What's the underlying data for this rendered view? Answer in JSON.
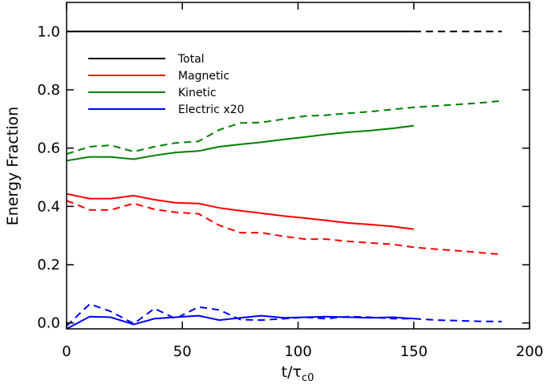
{
  "chart_data": {
    "type": "line",
    "title": "",
    "xlabel": "t/τ",
    "xlabel_sub": "c0",
    "ylabel": "Energy Fraction",
    "xlim": [
      0,
      200
    ],
    "ylim": [
      -0.02,
      1.1
    ],
    "xticks": [
      0,
      50,
      100,
      150,
      200
    ],
    "xtick_labels": [
      "0",
      "50",
      "100",
      "150",
      "200"
    ],
    "yticks": [
      0.0,
      0.2,
      0.4,
      0.6,
      0.8,
      1.0
    ],
    "ytick_labels": [
      "0.0",
      "0.2",
      "0.4",
      "0.6",
      "0.8",
      "1.0"
    ],
    "legend": [
      "Total",
      "Magnetic",
      "Kinetic",
      "Electric x20"
    ],
    "legend_position": "top-left",
    "series": [
      {
        "name": "Total",
        "style": "solid",
        "color": "#000000",
        "x": [
          0,
          150
        ],
        "y": [
          1.0,
          1.0
        ]
      },
      {
        "name": "Total",
        "style": "dashed",
        "color": "#000000",
        "x": [
          150,
          188
        ],
        "y": [
          1.0,
          1.0
        ]
      },
      {
        "name": "Magnetic",
        "style": "solid",
        "color": "#ff0000",
        "x": [
          0,
          10,
          19,
          29,
          38,
          47,
          57,
          66,
          75,
          84,
          94,
          103,
          112,
          122,
          131,
          141,
          150
        ],
        "y": [
          0.443,
          0.427,
          0.427,
          0.437,
          0.423,
          0.413,
          0.41,
          0.395,
          0.385,
          0.377,
          0.367,
          0.36,
          0.352,
          0.343,
          0.338,
          0.331,
          0.322
        ]
      },
      {
        "name": "Magnetic",
        "style": "dashed",
        "color": "#ff0000",
        "x": [
          0,
          10,
          19,
          29,
          38,
          47,
          57,
          66,
          75,
          84,
          94,
          103,
          112,
          122,
          131,
          141,
          150,
          160,
          169,
          178,
          188
        ],
        "y": [
          0.42,
          0.388,
          0.388,
          0.41,
          0.39,
          0.38,
          0.375,
          0.335,
          0.31,
          0.31,
          0.297,
          0.288,
          0.288,
          0.28,
          0.275,
          0.27,
          0.26,
          0.253,
          0.248,
          0.242,
          0.235
        ]
      },
      {
        "name": "Kinetic",
        "style": "solid",
        "color": "#008000",
        "x": [
          0,
          10,
          19,
          29,
          38,
          47,
          57,
          66,
          75,
          84,
          94,
          103,
          112,
          122,
          131,
          141,
          150
        ],
        "y": [
          0.557,
          0.57,
          0.57,
          0.562,
          0.575,
          0.585,
          0.59,
          0.605,
          0.613,
          0.62,
          0.63,
          0.638,
          0.647,
          0.655,
          0.66,
          0.668,
          0.677
        ]
      },
      {
        "name": "Kinetic",
        "style": "dashed",
        "color": "#008000",
        "x": [
          0,
          10,
          19,
          29,
          38,
          47,
          57,
          66,
          75,
          84,
          94,
          103,
          112,
          122,
          131,
          141,
          150,
          160,
          169,
          178,
          188
        ],
        "y": [
          0.58,
          0.605,
          0.61,
          0.588,
          0.605,
          0.618,
          0.623,
          0.663,
          0.686,
          0.688,
          0.7,
          0.71,
          0.713,
          0.72,
          0.725,
          0.733,
          0.74,
          0.745,
          0.75,
          0.755,
          0.762
        ]
      },
      {
        "name": "Electric x20",
        "style": "solid",
        "color": "#0000ff",
        "x": [
          0,
          10,
          19,
          29,
          38,
          47,
          57,
          66,
          75,
          84,
          94,
          103,
          112,
          122,
          131,
          141,
          150
        ],
        "y": [
          -0.02,
          0.022,
          0.02,
          -0.005,
          0.015,
          0.02,
          0.025,
          0.01,
          0.018,
          0.025,
          0.018,
          0.02,
          0.022,
          0.02,
          0.018,
          0.02,
          0.015
        ]
      },
      {
        "name": "Electric x20",
        "style": "dashed",
        "color": "#0000ff",
        "x": [
          0,
          10,
          19,
          29,
          38,
          47,
          57,
          66,
          75,
          84,
          94,
          103,
          112,
          122,
          131,
          141,
          150,
          160,
          169,
          178,
          188
        ],
        "y": [
          -0.01,
          0.065,
          0.04,
          -0.002,
          0.05,
          0.015,
          0.055,
          0.045,
          0.012,
          0.01,
          0.015,
          0.02,
          0.015,
          0.022,
          0.02,
          0.015,
          0.015,
          0.01,
          0.008,
          0.006,
          0.005
        ]
      }
    ]
  }
}
